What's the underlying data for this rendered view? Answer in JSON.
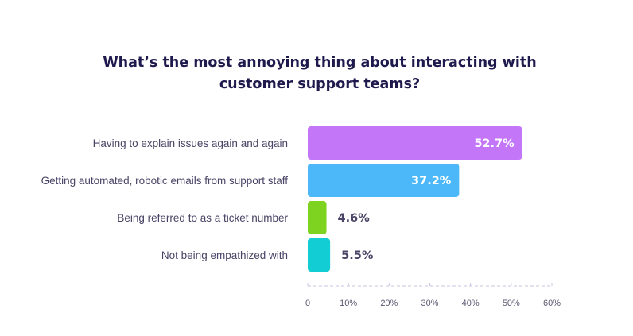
{
  "chart_data": {
    "type": "bar",
    "orientation": "horizontal",
    "title": "What’s the most annoying thing about interacting with customer support teams?",
    "title_lines": [
      "What’s the most annoying thing about interacting with",
      "customer support teams?"
    ],
    "categories": [
      "Having to explain issues again and again",
      "Getting automated, robotic emails from support staff",
      "Being referred to as a ticket number",
      "Not being empathized with"
    ],
    "values": [
      52.7,
      37.2,
      4.6,
      5.5
    ],
    "value_labels": [
      "52.7%",
      "37.2%",
      "4.6%",
      "5.5%"
    ],
    "colors": [
      "#c476f9",
      "#4db8f9",
      "#7ed320",
      "#12cdd4"
    ],
    "xlim": [
      0,
      60
    ],
    "xticks": [
      0,
      10,
      20,
      30,
      40,
      50,
      60
    ],
    "xtick_labels": [
      "0",
      "10%",
      "20%",
      "30%",
      "40%",
      "50%",
      "60%"
    ],
    "grid": false,
    "legend": "none",
    "xlabel": "",
    "ylabel": ""
  }
}
